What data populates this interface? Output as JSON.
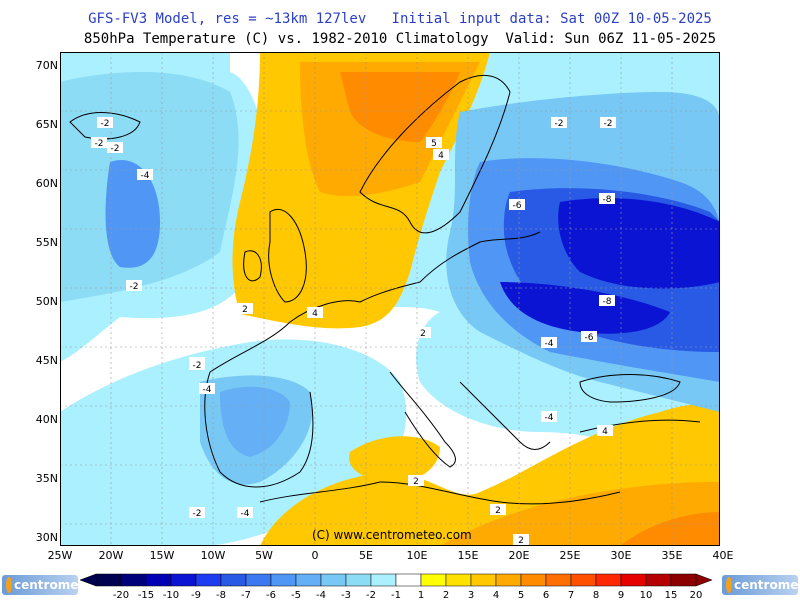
{
  "header": {
    "line1": "GFS-FV3 Model, res = ~13km 127lev   Initial input data: Sat 00Z 10-05-2025",
    "line2": "850hPa Temperature (C) vs. 1982-2010 Climatology  Valid: Sun 06Z 11-05-2025"
  },
  "map": {
    "lat_labels": [
      "70N",
      "65N",
      "60N",
      "55N",
      "50N",
      "45N",
      "40N",
      "35N",
      "30N"
    ],
    "lon_labels": [
      "25W",
      "20W",
      "15W",
      "10W",
      "5W",
      "0",
      "5E",
      "10E",
      "15E",
      "20E",
      "25E",
      "30E",
      "35E",
      "40E"
    ],
    "credit": "(C) www.centrometeo.com",
    "contour_labels": [
      "-2",
      "-2",
      "-4",
      "-2",
      "2",
      "4",
      "4",
      "2",
      "-2",
      "-4",
      "-6",
      "-8",
      "-8",
      "-6",
      "-4",
      "-2",
      "-4",
      "-4",
      "-2",
      "2",
      "2",
      "-2",
      "2",
      "5",
      "4",
      "-2",
      "-2"
    ]
  },
  "colorbar": {
    "ticks": [
      "-20",
      "-15",
      "-10",
      "-9",
      "-8",
      "-7",
      "-6",
      "-5",
      "-4",
      "-3",
      "-2",
      "-1",
      "1",
      "2",
      "3",
      "4",
      "5",
      "6",
      "7",
      "8",
      "9",
      "10",
      "15",
      "20"
    ],
    "colors": [
      "#000050",
      "#00007a",
      "#0000b4",
      "#0a14d2",
      "#1e3cf0",
      "#285ae6",
      "#3c78f0",
      "#5096f5",
      "#64aff5",
      "#78c8f5",
      "#8cdcf5",
      "#aaf0ff",
      "#ffffff",
      "#ffff00",
      "#ffe100",
      "#ffc800",
      "#ffaa00",
      "#ff8c00",
      "#ff6e00",
      "#ff5000",
      "#ff2800",
      "#e60000",
      "#b40000",
      "#8c0000"
    ],
    "logo_text": "centrometeo"
  }
}
